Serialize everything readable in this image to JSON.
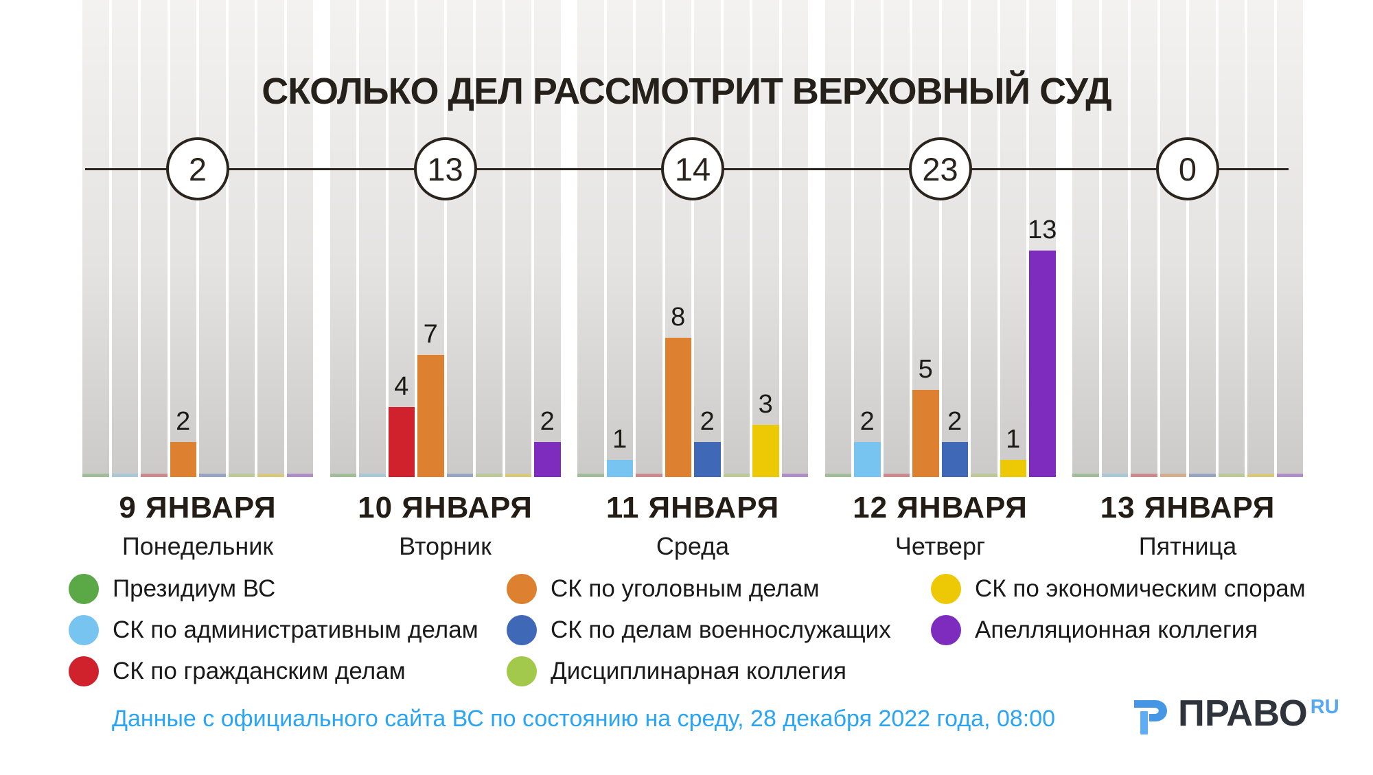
{
  "title": "СКОЛЬКО ДЕЛ РАССМОТРИТ ВЕРХОВНЫЙ СУД",
  "categories": [
    {
      "id": "presidium",
      "label": "Президиум ВС",
      "color": "#5ba846"
    },
    {
      "id": "admin",
      "label": "СК по административным делам",
      "color": "#76c4ef"
    },
    {
      "id": "civil",
      "label": "СК по гражданским делам",
      "color": "#d0222d"
    },
    {
      "id": "criminal",
      "label": "СК по уголовным делам",
      "color": "#dd8030"
    },
    {
      "id": "military",
      "label": "СК по делам военнослужащих",
      "color": "#3f68b6"
    },
    {
      "id": "disciplinary",
      "label": "Дисциплинарная коллегия",
      "color": "#a2c84c"
    },
    {
      "id": "economic",
      "label": "СК по экономическим спорам",
      "color": "#ecc904"
    },
    {
      "id": "appeal",
      "label": "Апелляционная коллегия",
      "color": "#7d2cbd"
    }
  ],
  "days": [
    {
      "date": "9 ЯНВАРЯ",
      "weekday": "Понедельник",
      "total": "2",
      "values": [
        0,
        0,
        0,
        2,
        0,
        0,
        0,
        0
      ]
    },
    {
      "date": "10 ЯНВАРЯ",
      "weekday": "Вторник",
      "total": "13",
      "values": [
        0,
        0,
        4,
        7,
        0,
        0,
        0,
        2
      ]
    },
    {
      "date": "11 ЯНВАРЯ",
      "weekday": "Среда",
      "total": "14",
      "values": [
        0,
        1,
        0,
        8,
        2,
        0,
        3,
        0
      ]
    },
    {
      "date": "12 ЯНВАРЯ",
      "weekday": "Четверг",
      "total": "23",
      "values": [
        0,
        2,
        0,
        5,
        2,
        0,
        1,
        13
      ]
    },
    {
      "date": "13 ЯНВАРЯ",
      "weekday": "Пятница",
      "total": "0",
      "values": [
        0,
        0,
        0,
        0,
        0,
        0,
        0,
        0
      ]
    }
  ],
  "legend_columns": [
    [
      0,
      1,
      2
    ],
    [
      3,
      4,
      5
    ],
    [
      6,
      7
    ]
  ],
  "footer": {
    "note": "Данные с официального сайта ВС по состоянию на среду, 28 декабря 2022 года, 08:00",
    "logo_word": "ПРАВО",
    "logo_suffix": "RU"
  },
  "colors": {
    "title_text": "#26201a",
    "timeline": "#2a241d",
    "footer_blue": "#2aa5f5",
    "logo_dark": "#2f333c",
    "logo_blue": "#57a8f0"
  },
  "chart_data": {
    "type": "bar",
    "title": "Сколько дел рассмотрит Верховный суд",
    "categories": [
      "9 января (Понедельник)",
      "10 января (Вторник)",
      "11 января (Среда)",
      "12 января (Четверг)",
      "13 января (Пятница)"
    ],
    "totals_per_day": [
      2,
      13,
      14,
      23,
      0
    ],
    "series": [
      {
        "name": "Президиум ВС",
        "values": [
          0,
          0,
          0,
          0,
          0
        ]
      },
      {
        "name": "СК по административным делам",
        "values": [
          0,
          0,
          1,
          2,
          0
        ]
      },
      {
        "name": "СК по гражданским делам",
        "values": [
          0,
          4,
          0,
          0,
          0
        ]
      },
      {
        "name": "СК по уголовным делам",
        "values": [
          2,
          7,
          8,
          5,
          0
        ]
      },
      {
        "name": "СК по делам военнослужащих",
        "values": [
          0,
          0,
          2,
          2,
          0
        ]
      },
      {
        "name": "Дисциплинарная коллегия",
        "values": [
          0,
          0,
          0,
          0,
          0
        ]
      },
      {
        "name": "СК по экономическим спорам",
        "values": [
          0,
          0,
          3,
          1,
          0
        ]
      },
      {
        "name": "Апелляционная коллегия",
        "values": [
          0,
          2,
          0,
          13,
          0
        ]
      }
    ],
    "xlabel": "",
    "ylabel": "",
    "ylim": [
      0,
      13
    ],
    "grid": false,
    "legend_position": "bottom",
    "annotations": "Только ненулевые значения подписаны над столбцами; итог дня показан в кружке на временной оси"
  }
}
